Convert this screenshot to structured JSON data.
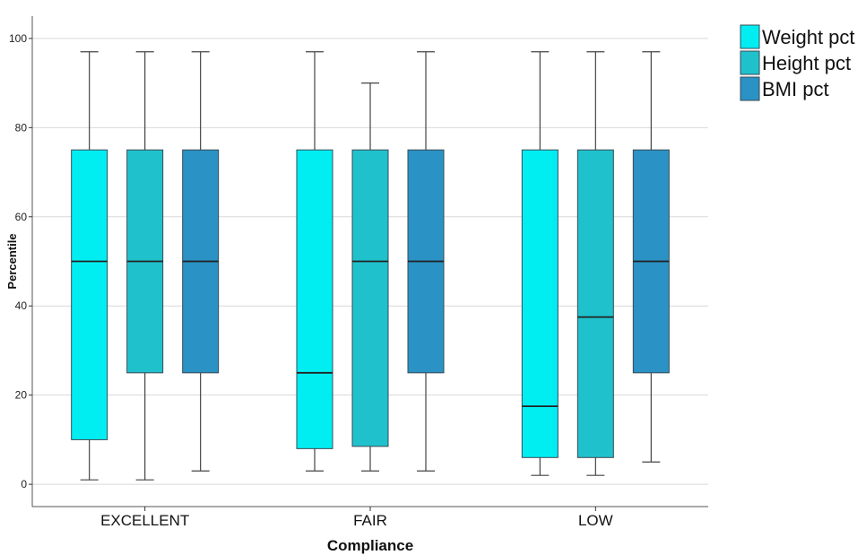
{
  "chart_data": {
    "type": "boxplot",
    "xlabel": "Compliance",
    "ylabel": "Percentile",
    "ylim": [
      -5,
      105
    ],
    "yticks": [
      0,
      20,
      40,
      60,
      80,
      100
    ],
    "grid": "horizontal",
    "legend_position": "top-right",
    "categories": [
      "EXCELLENT",
      "FAIR",
      "LOW"
    ],
    "series": [
      {
        "name": "Weight pct",
        "color": "#00EEF2",
        "boxes": [
          {
            "min": 1,
            "q1": 10,
            "median": 50,
            "q3": 75,
            "max": 97
          },
          {
            "min": 3,
            "q1": 8,
            "median": 25,
            "q3": 75,
            "max": 97
          },
          {
            "min": 2,
            "q1": 6,
            "median": 17.5,
            "q3": 75,
            "max": 97
          }
        ]
      },
      {
        "name": "Height pct",
        "color": "#1FC2CC",
        "boxes": [
          {
            "min": 1,
            "q1": 25,
            "median": 50,
            "q3": 75,
            "max": 97
          },
          {
            "min": 3,
            "q1": 8.5,
            "median": 50,
            "q3": 75,
            "max": 90
          },
          {
            "min": 2,
            "q1": 6,
            "median": 37.5,
            "q3": 75,
            "max": 97
          }
        ]
      },
      {
        "name": "BMI pct",
        "color": "#2A92C4",
        "boxes": [
          {
            "min": 3,
            "q1": 25,
            "median": 50,
            "q3": 75,
            "max": 97
          },
          {
            "min": 3,
            "q1": 25,
            "median": 50,
            "q3": 75,
            "max": 97
          },
          {
            "min": 5,
            "q1": 25,
            "median": 50,
            "q3": 75,
            "max": 97
          }
        ]
      }
    ]
  }
}
